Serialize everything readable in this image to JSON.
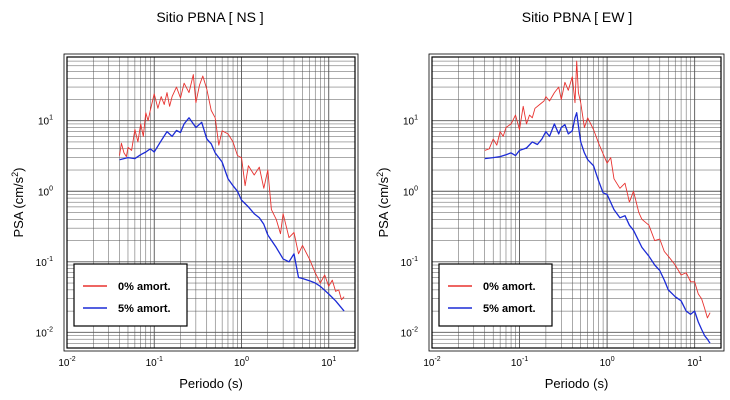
{
  "chart_data": [
    {
      "type": "line",
      "title": "Sitio PBNA [ NS ]",
      "xlabel": "Periodo (s)",
      "ylabel_base": "PSA (cm/s",
      "ylabel_exp": "2",
      "ylabel_close": ")",
      "x_scale": "log",
      "y_scale": "log",
      "xlim": [
        0.01,
        20
      ],
      "ylim": [
        0.006,
        80
      ],
      "x_ticks": [
        {
          "value": 0.01,
          "base": "10",
          "exp": "-2"
        },
        {
          "value": 0.1,
          "base": "10",
          "exp": "-1"
        },
        {
          "value": 1,
          "base": "10",
          "exp": "0"
        },
        {
          "value": 10,
          "base": "10",
          "exp": "1"
        }
      ],
      "y_ticks": [
        {
          "value": 0.01,
          "base": "10",
          "exp": "-2"
        },
        {
          "value": 0.1,
          "base": "10",
          "exp": "-1"
        },
        {
          "value": 1,
          "base": "10",
          "exp": "0"
        },
        {
          "value": 10,
          "base": "10",
          "exp": "1"
        }
      ],
      "grid": true,
      "legend_position": "bottom-left",
      "series": [
        {
          "name": "0% amort.",
          "color": "#e8322f",
          "x": [
            0.04,
            0.042,
            0.045,
            0.048,
            0.05,
            0.055,
            0.06,
            0.065,
            0.07,
            0.075,
            0.08,
            0.085,
            0.09,
            0.1,
            0.11,
            0.12,
            0.13,
            0.14,
            0.15,
            0.16,
            0.18,
            0.2,
            0.22,
            0.25,
            0.28,
            0.3,
            0.33,
            0.36,
            0.4,
            0.45,
            0.5,
            0.55,
            0.6,
            0.7,
            0.8,
            0.9,
            1.0,
            1.1,
            1.2,
            1.4,
            1.6,
            1.8,
            2.0,
            2.2,
            2.5,
            2.8,
            3.0,
            3.5,
            4.0,
            4.5,
            5.0,
            6.0,
            7.0,
            8.0,
            9.0,
            10,
            11,
            12,
            13,
            14,
            15
          ],
          "y": [
            3.2,
            4.8,
            3.5,
            3.1,
            4.2,
            3.8,
            7.5,
            5.0,
            9.0,
            6.0,
            13.0,
            10.0,
            14.0,
            24.0,
            15.0,
            22.0,
            17.0,
            25.0,
            16.0,
            22.0,
            30.0,
            21.0,
            34.0,
            25.0,
            45.0,
            18.0,
            32.0,
            43.0,
            28.0,
            14.0,
            11.0,
            4.5,
            7.2,
            6.5,
            5.0,
            3.2,
            3.0,
            1.2,
            2.3,
            1.7,
            2.2,
            1.1,
            2.0,
            0.55,
            0.4,
            0.25,
            0.48,
            0.22,
            0.26,
            0.13,
            0.17,
            0.11,
            0.07,
            0.05,
            0.065,
            0.045,
            0.055,
            0.038,
            0.04,
            0.029,
            0.032
          ]
        },
        {
          "name": "5% amort.",
          "color": "#1c2bd6",
          "x": [
            0.04,
            0.05,
            0.06,
            0.07,
            0.08,
            0.09,
            0.1,
            0.12,
            0.14,
            0.16,
            0.18,
            0.2,
            0.22,
            0.25,
            0.3,
            0.35,
            0.4,
            0.45,
            0.5,
            0.55,
            0.6,
            0.7,
            0.8,
            0.9,
            1.0,
            1.2,
            1.4,
            1.6,
            1.8,
            2.0,
            2.5,
            3.0,
            3.5,
            4.0,
            4.5,
            5,
            6,
            7,
            8,
            10,
            12,
            15
          ],
          "y": [
            2.8,
            3.0,
            2.9,
            3.3,
            3.6,
            4.0,
            3.6,
            5.2,
            7.0,
            6.0,
            7.3,
            6.8,
            9.0,
            11.0,
            8.0,
            9.5,
            5.5,
            4.7,
            3.5,
            3.0,
            2.6,
            1.5,
            1.2,
            1.0,
            0.75,
            0.6,
            0.48,
            0.42,
            0.34,
            0.24,
            0.16,
            0.11,
            0.1,
            0.13,
            0.06,
            0.058,
            0.054,
            0.05,
            0.045,
            0.035,
            0.028,
            0.02
          ]
        }
      ]
    },
    {
      "type": "line",
      "title": "Sitio PBNA [ EW ]",
      "xlabel": "Periodo (s)",
      "ylabel_base": "PSA (cm/s",
      "ylabel_exp": "2",
      "ylabel_close": ")",
      "x_scale": "log",
      "y_scale": "log",
      "xlim": [
        0.01,
        20
      ],
      "ylim": [
        0.006,
        80
      ],
      "x_ticks": [
        {
          "value": 0.01,
          "base": "10",
          "exp": "-2"
        },
        {
          "value": 0.1,
          "base": "10",
          "exp": "-1"
        },
        {
          "value": 1,
          "base": "10",
          "exp": "0"
        },
        {
          "value": 10,
          "base": "10",
          "exp": "1"
        }
      ],
      "y_ticks": [
        {
          "value": 0.01,
          "base": "10",
          "exp": "-2"
        },
        {
          "value": 0.1,
          "base": "10",
          "exp": "-1"
        },
        {
          "value": 1,
          "base": "10",
          "exp": "0"
        },
        {
          "value": 10,
          "base": "10",
          "exp": "1"
        }
      ],
      "grid": true,
      "legend_position": "bottom-left",
      "series": [
        {
          "name": "0% amort.",
          "color": "#e8322f",
          "x": [
            0.04,
            0.045,
            0.05,
            0.055,
            0.06,
            0.065,
            0.07,
            0.08,
            0.09,
            0.1,
            0.11,
            0.12,
            0.13,
            0.14,
            0.15,
            0.17,
            0.19,
            0.2,
            0.22,
            0.25,
            0.28,
            0.3,
            0.33,
            0.36,
            0.4,
            0.43,
            0.45,
            0.47,
            0.5,
            0.55,
            0.6,
            0.7,
            0.8,
            0.9,
            1.0,
            1.1,
            1.2,
            1.4,
            1.6,
            1.8,
            2.0,
            2.3,
            2.5,
            3.0,
            3.5,
            4.0,
            4.5,
            5.0,
            6,
            7,
            8,
            9,
            10,
            11,
            12,
            13,
            14,
            15
          ],
          "y": [
            3.8,
            4.0,
            5.5,
            4.5,
            7.0,
            6.0,
            8.0,
            9.0,
            12.0,
            7.5,
            16.0,
            9.0,
            12.0,
            11.0,
            15.0,
            17.0,
            19.0,
            22.0,
            19.0,
            25.0,
            30.0,
            20.0,
            35.0,
            27.0,
            42.0,
            18.0,
            70.0,
            25.0,
            18.0,
            8.0,
            11.0,
            7.5,
            4.8,
            3.4,
            2.5,
            3.0,
            1.5,
            1.1,
            1.3,
            0.7,
            1.0,
            0.5,
            0.4,
            0.33,
            0.2,
            0.21,
            0.14,
            0.12,
            0.09,
            0.065,
            0.07,
            0.052,
            0.052,
            0.035,
            0.03,
            0.022,
            0.016,
            0.019
          ]
        },
        {
          "name": "5% amort.",
          "color": "#1c2bd6",
          "x": [
            0.04,
            0.05,
            0.06,
            0.07,
            0.08,
            0.09,
            0.1,
            0.12,
            0.14,
            0.16,
            0.18,
            0.2,
            0.22,
            0.25,
            0.28,
            0.3,
            0.33,
            0.36,
            0.4,
            0.43,
            0.45,
            0.48,
            0.5,
            0.55,
            0.6,
            0.7,
            0.8,
            0.9,
            1.0,
            1.2,
            1.4,
            1.6,
            1.8,
            2.0,
            2.5,
            3.0,
            3.5,
            4.0,
            4.5,
            5,
            6,
            7,
            8,
            9,
            10,
            11,
            12,
            13,
            14,
            15
          ],
          "y": [
            2.9,
            3.0,
            3.1,
            3.3,
            3.5,
            3.2,
            3.8,
            4.1,
            5.0,
            4.6,
            5.5,
            7.0,
            6.0,
            9.0,
            6.5,
            8.0,
            8.8,
            6.5,
            7.2,
            11.0,
            13.0,
            7.0,
            5.0,
            3.5,
            2.8,
            2.3,
            1.4,
            0.95,
            0.9,
            0.55,
            0.42,
            0.45,
            0.33,
            0.28,
            0.16,
            0.12,
            0.09,
            0.075,
            0.055,
            0.04,
            0.032,
            0.028,
            0.02,
            0.018,
            0.02,
            0.014,
            0.011,
            0.009,
            0.008,
            0.007
          ]
        }
      ]
    }
  ]
}
